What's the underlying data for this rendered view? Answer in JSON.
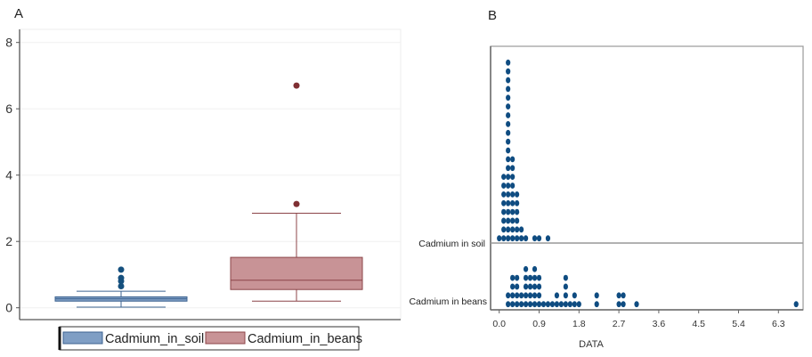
{
  "chart_data": [
    {
      "panel_label": "A",
      "type": "box",
      "ylim": [
        0,
        8.4
      ],
      "yticks": [
        "0",
        "2",
        "4",
        "6",
        "8"
      ],
      "grid": true,
      "legend_placement": "bottom",
      "series": [
        {
          "name": "Cadmium_in_soil",
          "color": "#7f9ec4",
          "stroke": "#3d6390",
          "outlier_color": "#15507e",
          "whisker_low": 0.02,
          "q1": 0.2,
          "median": 0.27,
          "q3": 0.33,
          "whisker_high": 0.5,
          "outliers": [
            0.65,
            0.8,
            0.9,
            1.15
          ]
        },
        {
          "name": "Cadmium_in_beans",
          "color": "#c89396",
          "stroke": "#8c4448",
          "outlier_color": "#7f2f33",
          "whisker_low": 0.2,
          "q1": 0.55,
          "median": 0.83,
          "q3": 1.52,
          "whisker_high": 2.85,
          "outliers": [
            3.13,
            6.7
          ]
        }
      ]
    },
    {
      "panel_label": "B",
      "type": "dotplot",
      "xlabel": "DATA",
      "xlim": [
        -0.15,
        6.85
      ],
      "xticks": [
        "0.0",
        "0.9",
        "1.8",
        "2.7",
        "3.6",
        "4.5",
        "5.4",
        "6.3"
      ],
      "dot_color": "#0f4c81",
      "groups": [
        {
          "name": "Cadmium in soil",
          "bins": [
            [
              0.0,
              1
            ],
            [
              0.1,
              8
            ],
            [
              0.2,
              21
            ],
            [
              0.3,
              10
            ],
            [
              0.4,
              6
            ],
            [
              0.5,
              2
            ],
            [
              0.6,
              1
            ],
            [
              0.8,
              1
            ],
            [
              0.9,
              1
            ],
            [
              1.1,
              1
            ]
          ]
        },
        {
          "name": "Cadmium in beans",
          "bins": [
            [
              0.2,
              2
            ],
            [
              0.3,
              4
            ],
            [
              0.4,
              4
            ],
            [
              0.5,
              2
            ],
            [
              0.6,
              5
            ],
            [
              0.7,
              4
            ],
            [
              0.8,
              5
            ],
            [
              0.9,
              4
            ],
            [
              1.0,
              1
            ],
            [
              1.1,
              1
            ],
            [
              1.2,
              1
            ],
            [
              1.3,
              2
            ],
            [
              1.4,
              1
            ],
            [
              1.5,
              4
            ],
            [
              1.6,
              1
            ],
            [
              1.7,
              2
            ],
            [
              1.8,
              1
            ],
            [
              2.2,
              2
            ],
            [
              2.7,
              2
            ],
            [
              2.8,
              2
            ],
            [
              3.1,
              1
            ],
            [
              6.7,
              1
            ]
          ]
        }
      ]
    }
  ]
}
